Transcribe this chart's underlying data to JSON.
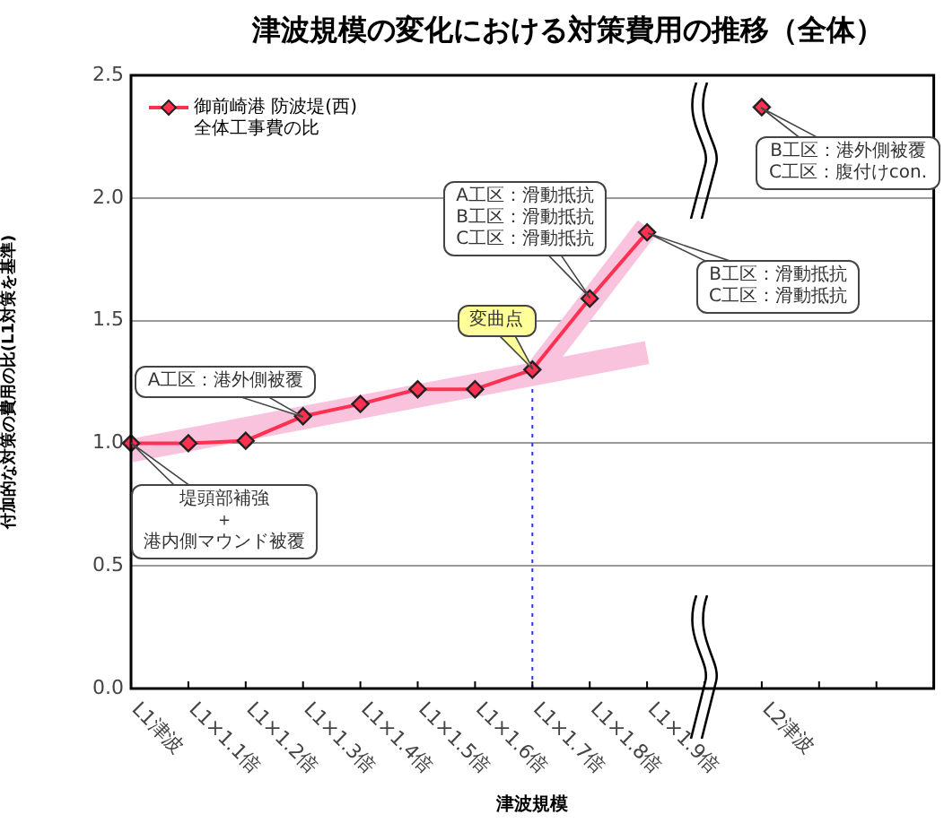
{
  "chart_data": {
    "type": "line",
    "title": "津波規模の変化における対策費用の推移（全体）",
    "xlabel": "津波規模",
    "ylabel": "付加的な対策の費用の比(L1対策を基準)",
    "categories": [
      "L1津波",
      "L1×1.1倍",
      "L1×1.2倍",
      "L1×1.3倍",
      "L1×1.4倍",
      "L1×1.5倍",
      "L1×1.6倍",
      "L1×1.7倍",
      "L1×1.8倍",
      "L1×1.9倍",
      null,
      "L2津波",
      null,
      null,
      null
    ],
    "series": [
      {
        "name": "御前崎港 防波堤(西)\n全体工事費の比",
        "color": "#ff3050",
        "values": [
          1.0,
          1.0,
          1.01,
          1.11,
          1.16,
          1.22,
          1.22,
          1.3,
          1.59,
          1.86,
          null,
          2.37,
          null,
          null,
          null
        ]
      },
      {
        "type": "line",
        "color": "#f9c3de",
        "marker": "none",
        "values": [
          0.97,
          null,
          null,
          null,
          null,
          null,
          null,
          null,
          null,
          1.37,
          null,
          null,
          null,
          null,
          null
        ]
      },
      {
        "type": "line",
        "color": "#f9c3de",
        "marker": "none",
        "values": [
          null,
          null,
          null,
          null,
          null,
          null,
          null,
          1.27,
          null,
          1.88,
          null,
          null,
          null,
          null,
          null
        ]
      }
    ],
    "ylim": [
      0,
      2.5
    ],
    "yticks": [
      {
        "value": 0,
        "label": "0.0"
      },
      {
        "value": 0.5,
        "label": "0.5"
      },
      {
        "value": 1,
        "label": "1.0"
      },
      {
        "value": 1.5,
        "label": "1.5"
      },
      {
        "value": 2,
        "label": "2.0"
      },
      {
        "value": 2.5,
        "label": "2.5"
      }
    ],
    "grid": "y",
    "legend": "top left",
    "marker": "diamond",
    "line_style": "solid",
    "ref_lines": [
      {
        "axis": "x",
        "value": "L1×1.7倍",
        "color": "#3333ff",
        "line_style": "dotted"
      }
    ],
    "annotations": [
      {
        "text": "A工区：港外側被覆",
        "x": "L1×1.3倍",
        "y": 1.11
      },
      {
        "text": "堤頭部補強＋港内側マウンド被覆",
        "x": "L1津波",
        "y": 1.0
      },
      {
        "text": "変曲点",
        "x": "L1×1.7倍",
        "y": 1.3
      },
      {
        "text": "A工区：滑動抵抗\nB工区：滑動抵抗\nC工区：滑動抵抗",
        "x": "L1×1.8倍",
        "y": 1.59
      },
      {
        "text": "B工区：滑動抵抗\nC工区：滑動抵抗",
        "x": "L1×1.9倍",
        "y": 1.86
      },
      {
        "text": "B工区：港外側被覆\nC工区：腹付けcon.",
        "x": "L2津波",
        "y": 2.37
      }
    ]
  }
}
